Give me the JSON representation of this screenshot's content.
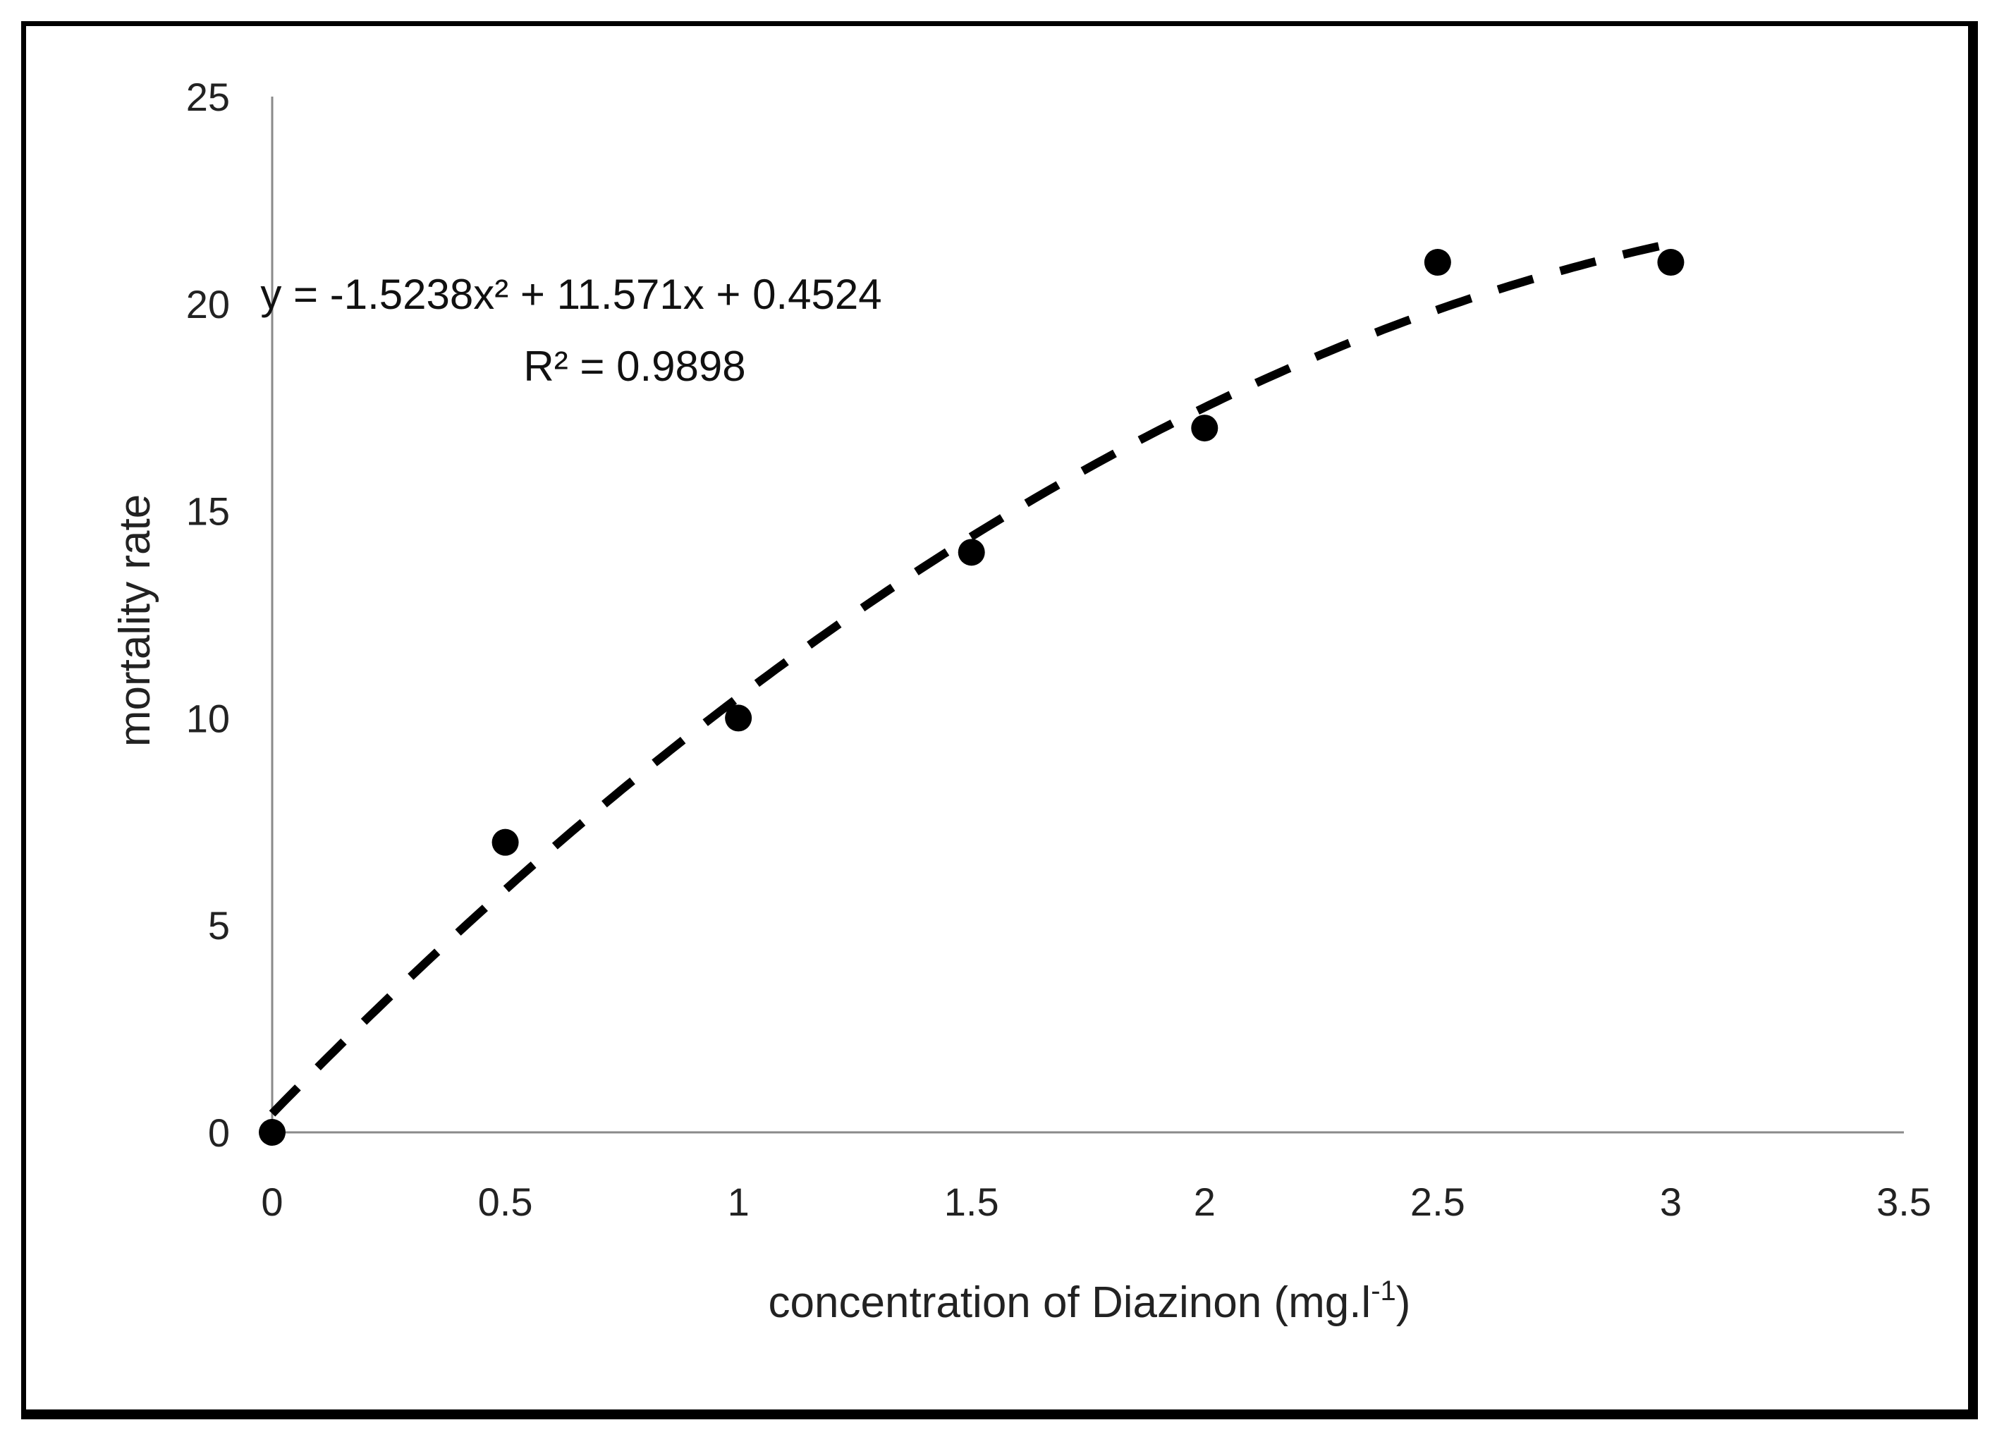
{
  "chart_data": {
    "type": "scatter",
    "title": "",
    "xlabel": "concentration of Diazinon (mg.l",
    "xlabel_superscript": "-1",
    "xlabel_suffix": ")",
    "ylabel": "mortality rate",
    "xlim": [
      0,
      3.5
    ],
    "ylim": [
      0,
      25
    ],
    "x_ticks": [
      "0",
      "0.5",
      "1",
      "1.5",
      "2",
      "2.5",
      "3",
      "3.5"
    ],
    "y_ticks": [
      "0",
      "5",
      "10",
      "15",
      "20",
      "25"
    ],
    "grid": false,
    "series": [
      {
        "x": [
          0,
          0.5,
          1,
          1.5,
          2,
          2.5,
          3
        ],
        "y": [
          0,
          7,
          10,
          14,
          17,
          21,
          21
        ]
      }
    ],
    "trendline": {
      "kind": "polynomial",
      "coefficients": [
        -1.5238,
        11.571,
        0.4524
      ],
      "equation": "y = -1.5238x² + 11.571x + 0.4524",
      "r_squared": "R² = 0.9898",
      "x_range": [
        0,
        3
      ]
    }
  }
}
